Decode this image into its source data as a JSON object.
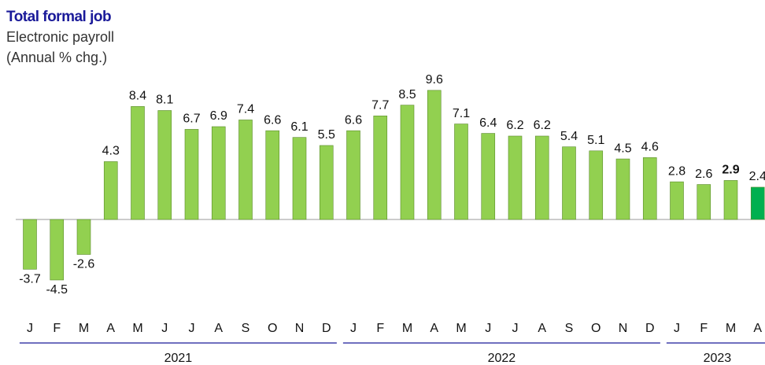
{
  "chart_data": {
    "type": "bar",
    "title": "Total formal job",
    "subtitle": [
      "Electronic payroll",
      "(Annual  % chg.)"
    ],
    "categories": [
      "J",
      "F",
      "M",
      "A",
      "M",
      "J",
      "J",
      "A",
      "S",
      "O",
      "N",
      "D",
      "J",
      "F",
      "M",
      "A",
      "M",
      "J",
      "J",
      "A",
      "S",
      "O",
      "N",
      "D",
      "J",
      "F",
      "M",
      "A"
    ],
    "values": [
      -3.7,
      -4.5,
      -2.6,
      4.3,
      8.4,
      8.1,
      6.7,
      6.9,
      7.4,
      6.6,
      6.1,
      5.5,
      6.6,
      7.7,
      8.5,
      9.6,
      7.1,
      6.4,
      6.2,
      6.2,
      5.4,
      5.1,
      4.5,
      4.6,
      2.8,
      2.6,
      2.9,
      2.4
    ],
    "colors": [
      "#92d050",
      "#92d050",
      "#92d050",
      "#92d050",
      "#92d050",
      "#92d050",
      "#92d050",
      "#92d050",
      "#92d050",
      "#92d050",
      "#92d050",
      "#92d050",
      "#92d050",
      "#92d050",
      "#92d050",
      "#92d050",
      "#92d050",
      "#92d050",
      "#92d050",
      "#92d050",
      "#92d050",
      "#92d050",
      "#92d050",
      "#92d050",
      "#92d050",
      "#92d050",
      "#92d050",
      "#00b050"
    ],
    "emphasized": [
      26
    ],
    "groups": [
      {
        "label": "2021",
        "count": 12
      },
      {
        "label": "2022",
        "count": 12
      },
      {
        "label": "2023",
        "count": 4
      }
    ]
  }
}
